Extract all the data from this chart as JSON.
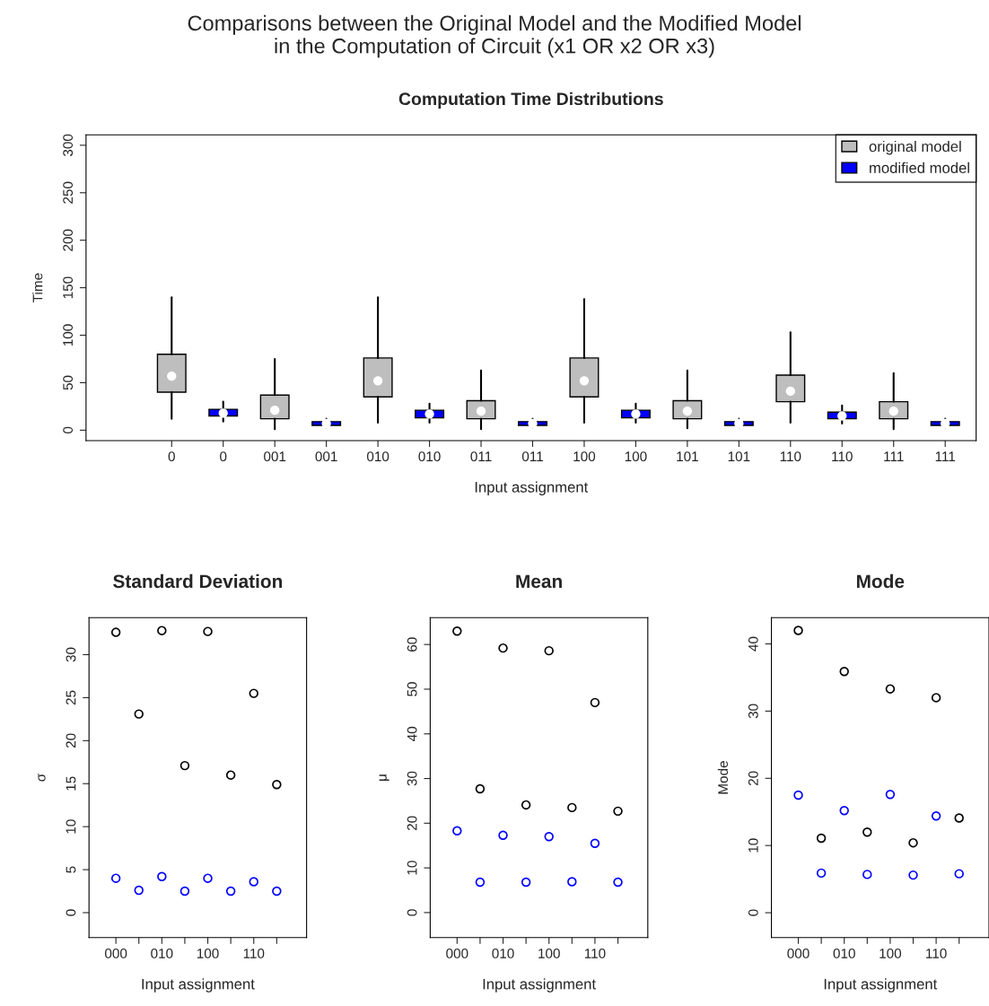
{
  "chart_data": [
    {
      "type": "box",
      "title": "Comparisons between the Original Model and the Modified Model\nin the Computation of Circuit (x1 OR x2 OR x3)",
      "subtitle": "Computation Time Distributions",
      "xlabel": "Input assignment",
      "ylabel": "Time",
      "categories": [
        "0",
        "0",
        "001",
        "001",
        "010",
        "010",
        "011",
        "011",
        "100",
        "100",
        "101",
        "101",
        "110",
        "110",
        "111",
        "111"
      ],
      "ylim": [
        -11,
        311
      ],
      "yticks": [
        0,
        50,
        100,
        150,
        200,
        250,
        300
      ],
      "legend": "top right",
      "grid": false,
      "series": [
        {
          "name": "original model",
          "color": "#bebebe",
          "boxes": [
            {
              "low": 12,
              "q1": 40,
              "median": 57,
              "q3": 80,
              "high": 140
            },
            null,
            {
              "low": 1,
              "q1": 12,
              "median": 21,
              "q3": 37,
              "high": 75
            },
            null,
            {
              "low": 8,
              "q1": 35,
              "median": 52,
              "q3": 76,
              "high": 140
            },
            null,
            {
              "low": 1,
              "q1": 12,
              "median": 20,
              "q3": 31,
              "high": 63
            },
            null,
            {
              "low": 8,
              "q1": 35,
              "median": 52,
              "q3": 76,
              "high": 138
            },
            null,
            {
              "low": 2,
              "q1": 12,
              "median": 20,
              "q3": 31,
              "high": 63
            },
            null,
            {
              "low": 8,
              "q1": 30,
              "median": 41,
              "q3": 58,
              "high": 103
            },
            null,
            {
              "low": 1,
              "q1": 12,
              "median": 20,
              "q3": 30,
              "high": 60
            },
            null
          ]
        },
        {
          "name": "modified model",
          "color": "#0000ff",
          "boxes": [
            null,
            {
              "low": 9,
              "q1": 15,
              "median": 18,
              "q3": 22,
              "high": 30
            },
            null,
            {
              "low": 3,
              "q1": 5,
              "median": 7,
              "q3": 9,
              "high": 12
            },
            null,
            {
              "low": 8,
              "q1": 13,
              "median": 17,
              "q3": 21,
              "high": 28
            },
            null,
            {
              "low": 3,
              "q1": 5,
              "median": 7,
              "q3": 9,
              "high": 12
            },
            null,
            {
              "low": 8,
              "q1": 13,
              "median": 17,
              "q3": 21,
              "high": 28
            },
            null,
            {
              "low": 3,
              "q1": 5,
              "median": 7,
              "q3": 9,
              "high": 12
            },
            null,
            {
              "low": 7,
              "q1": 12,
              "median": 15,
              "q3": 19,
              "high": 26
            },
            null,
            {
              "low": 3,
              "q1": 5,
              "median": 7,
              "q3": 9,
              "high": 12
            }
          ]
        }
      ]
    },
    {
      "type": "scatter",
      "title": "Standard Deviation",
      "xlabel": "Input assignment",
      "ylabel": "σ",
      "marker": "circle",
      "grid": false,
      "legend": false,
      "categories": [
        "000",
        null,
        "010",
        null,
        "100",
        null,
        "110",
        null
      ],
      "ylim": [
        -2.9,
        34.3
      ],
      "yticks": [
        0,
        5,
        10,
        15,
        20,
        25,
        30
      ],
      "series": [
        {
          "color": "#000000",
          "values": [
            32.6,
            23.1,
            32.8,
            17.1,
            32.7,
            16.0,
            25.5,
            14.9
          ]
        },
        {
          "color": "#0000ff",
          "values": [
            4.0,
            2.6,
            4.2,
            2.5,
            4.0,
            2.5,
            3.6,
            2.5
          ]
        }
      ]
    },
    {
      "type": "scatter",
      "title": "Mean",
      "xlabel": "Input assignment",
      "ylabel": "μ",
      "marker": "circle",
      "grid": false,
      "legend": false,
      "categories": [
        "000",
        null,
        "010",
        null,
        "100",
        null,
        "110",
        null
      ],
      "ylim": [
        -5.6,
        66
      ],
      "yticks": [
        0,
        10,
        20,
        30,
        40,
        50,
        60
      ],
      "series": [
        {
          "color": "#000000",
          "values": [
            63.0,
            27.7,
            59.2,
            24.1,
            58.6,
            23.5,
            47.0,
            22.7
          ]
        },
        {
          "color": "#0000ff",
          "values": [
            18.3,
            6.8,
            17.3,
            6.8,
            17.0,
            6.9,
            15.5,
            6.8
          ]
        }
      ]
    },
    {
      "type": "scatter",
      "title": "Mode",
      "xlabel": "Input assignment",
      "ylabel": "Mode",
      "marker": "circle",
      "grid": false,
      "legend": false,
      "categories": [
        "000",
        null,
        "010",
        null,
        "100",
        null,
        "110",
        null
      ],
      "ylim": [
        -3.7,
        43.9
      ],
      "yticks": [
        0,
        10,
        20,
        30,
        40
      ],
      "series": [
        {
          "color": "#000000",
          "values": [
            42.0,
            11.1,
            35.9,
            12.0,
            33.3,
            10.4,
            32.0,
            14.1
          ]
        },
        {
          "color": "#0000ff",
          "values": [
            17.5,
            5.9,
            15.2,
            5.7,
            17.6,
            5.6,
            14.4,
            5.8
          ]
        }
      ]
    }
  ]
}
